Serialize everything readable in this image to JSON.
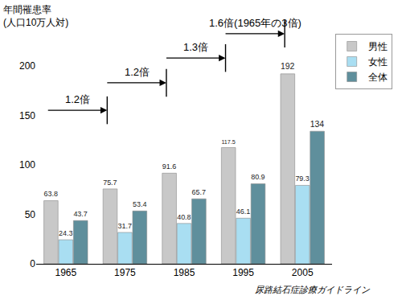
{
  "chart_data": {
    "type": "bar",
    "y_label": "年間罹患率\n(人口10万人対)",
    "source": "尿路結石症診療ガイドライン",
    "categories": [
      "1965",
      "1975",
      "1985",
      "1995",
      "2005"
    ],
    "series": [
      {
        "name": "男性",
        "color": "#c8c8c8",
        "values": [
          63.8,
          75.7,
          91.6,
          117.5,
          192
        ]
      },
      {
        "name": "女性",
        "color": "#a9def2",
        "values": [
          24.3,
          31.7,
          40.8,
          46.1,
          79.3
        ]
      },
      {
        "name": "全体",
        "color": "#5f8f9c",
        "values": [
          43.7,
          53.4,
          65.7,
          80.9,
          134
        ]
      }
    ],
    "annotations": [
      {
        "text": "1.2倍",
        "from": "1965",
        "to": "1975"
      },
      {
        "text": "1.2倍",
        "from": "1975",
        "to": "1985"
      },
      {
        "text": "1.3倍",
        "from": "1985",
        "to": "1995"
      },
      {
        "text": "1.6倍(1965年の3倍)",
        "from": "1995",
        "to": "2005"
      }
    ],
    "ylim": [
      0,
      200
    ],
    "yticks": [
      0,
      50,
      100,
      150,
      200
    ],
    "grid": false,
    "legend": "upper right",
    "data_labels": true
  }
}
